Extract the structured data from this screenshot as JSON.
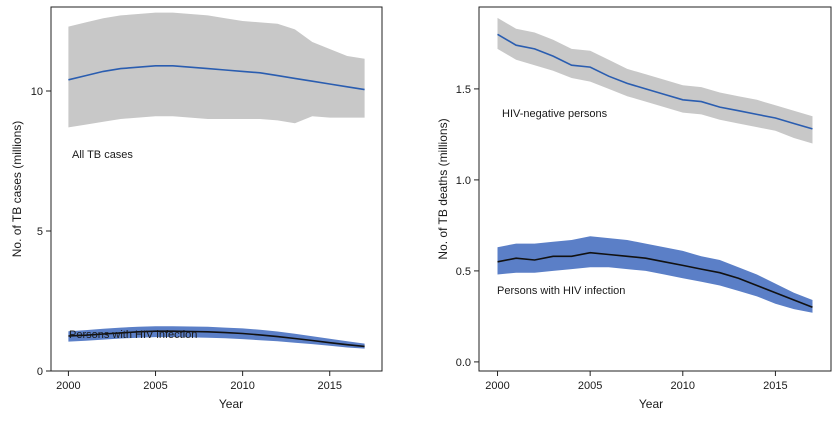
{
  "chart_data": [
    {
      "type": "line",
      "title": "",
      "xlabel": "Year",
      "ylabel": "No. of TB cases (millions)",
      "xlim": [
        1999,
        2018
      ],
      "ylim": [
        0,
        13
      ],
      "xticks": [
        2000,
        2005,
        2010,
        2015
      ],
      "xtick_labels": [
        "2000",
        "2005",
        "2010",
        "2015"
      ],
      "yticks": [
        0,
        5,
        10
      ],
      "ytick_labels": [
        "0",
        "5",
        "10"
      ],
      "grid": false,
      "x": [
        2000,
        2001,
        2002,
        2003,
        2004,
        2005,
        2006,
        2007,
        2008,
        2009,
        2010,
        2011,
        2012,
        2013,
        2014,
        2015,
        2016,
        2017
      ],
      "series": [
        {
          "name": "All TB cases",
          "label": "All TB cases",
          "color": "#2a5db0",
          "band_color": "#c8c8c8",
          "values": [
            10.4,
            10.55,
            10.7,
            10.8,
            10.85,
            10.9,
            10.9,
            10.85,
            10.8,
            10.75,
            10.7,
            10.65,
            10.55,
            10.45,
            10.35,
            10.25,
            10.15,
            10.05
          ],
          "lower": [
            8.7,
            8.8,
            8.9,
            9.0,
            9.05,
            9.1,
            9.1,
            9.05,
            9.0,
            9.0,
            9.0,
            9.0,
            8.95,
            8.85,
            9.1,
            9.05,
            9.05,
            9.05
          ],
          "upper": [
            12.3,
            12.45,
            12.6,
            12.7,
            12.75,
            12.8,
            12.8,
            12.75,
            12.7,
            12.6,
            12.5,
            12.45,
            12.4,
            12.2,
            11.75,
            11.5,
            11.25,
            11.15
          ]
        },
        {
          "name": "Persons with HIV infection",
          "label": "Persons with HIV infection",
          "color": "#111111",
          "band_color": "#5b7fc7",
          "values": [
            1.25,
            1.28,
            1.32,
            1.36,
            1.4,
            1.42,
            1.42,
            1.41,
            1.4,
            1.37,
            1.34,
            1.29,
            1.23,
            1.16,
            1.09,
            1.01,
            0.94,
            0.88
          ],
          "lower": [
            1.05,
            1.08,
            1.12,
            1.16,
            1.19,
            1.21,
            1.21,
            1.2,
            1.19,
            1.17,
            1.14,
            1.1,
            1.06,
            1.01,
            0.96,
            0.9,
            0.84,
            0.8
          ],
          "upper": [
            1.42,
            1.46,
            1.51,
            1.55,
            1.58,
            1.6,
            1.6,
            1.59,
            1.58,
            1.55,
            1.52,
            1.47,
            1.41,
            1.33,
            1.24,
            1.15,
            1.06,
            0.98
          ]
        }
      ]
    },
    {
      "type": "line",
      "title": "",
      "xlabel": "Year",
      "ylabel": "No. of TB deaths (millions)",
      "xlim": [
        1999,
        2018
      ],
      "ylim": [
        -0.05,
        1.95
      ],
      "xticks": [
        2000,
        2005,
        2010,
        2015
      ],
      "xtick_labels": [
        "2000",
        "2005",
        "2010",
        "2015"
      ],
      "yticks": [
        0.0,
        0.5,
        1.0,
        1.5
      ],
      "ytick_labels": [
        "0.0",
        "0.5",
        "1.0",
        "1.5"
      ],
      "grid": false,
      "x": [
        2000,
        2001,
        2002,
        2003,
        2004,
        2005,
        2006,
        2007,
        2008,
        2009,
        2010,
        2011,
        2012,
        2013,
        2014,
        2015,
        2016,
        2017
      ],
      "series": [
        {
          "name": "HIV-negative persons",
          "label": "HIV-negative persons",
          "color": "#2a5db0",
          "band_color": "#c8c8c8",
          "values": [
            1.8,
            1.74,
            1.72,
            1.68,
            1.63,
            1.62,
            1.57,
            1.53,
            1.5,
            1.47,
            1.44,
            1.43,
            1.4,
            1.38,
            1.36,
            1.34,
            1.31,
            1.28
          ],
          "lower": [
            1.72,
            1.66,
            1.63,
            1.6,
            1.56,
            1.54,
            1.5,
            1.46,
            1.43,
            1.4,
            1.37,
            1.36,
            1.33,
            1.31,
            1.29,
            1.27,
            1.23,
            1.2
          ],
          "upper": [
            1.89,
            1.83,
            1.81,
            1.77,
            1.72,
            1.71,
            1.66,
            1.61,
            1.58,
            1.55,
            1.52,
            1.51,
            1.48,
            1.46,
            1.44,
            1.41,
            1.38,
            1.35
          ]
        },
        {
          "name": "Persons with HIV infection",
          "label": "Persons with HIV infection",
          "color": "#111111",
          "band_color": "#5b7fc7",
          "values": [
            0.55,
            0.57,
            0.56,
            0.58,
            0.58,
            0.6,
            0.59,
            0.58,
            0.57,
            0.55,
            0.53,
            0.51,
            0.49,
            0.46,
            0.42,
            0.38,
            0.34,
            0.3
          ],
          "lower": [
            0.48,
            0.49,
            0.49,
            0.5,
            0.51,
            0.52,
            0.52,
            0.51,
            0.5,
            0.48,
            0.46,
            0.44,
            0.42,
            0.39,
            0.36,
            0.32,
            0.29,
            0.27
          ],
          "upper": [
            0.63,
            0.65,
            0.65,
            0.66,
            0.67,
            0.69,
            0.68,
            0.67,
            0.65,
            0.63,
            0.61,
            0.58,
            0.56,
            0.52,
            0.48,
            0.43,
            0.38,
            0.34
          ]
        }
      ]
    }
  ]
}
